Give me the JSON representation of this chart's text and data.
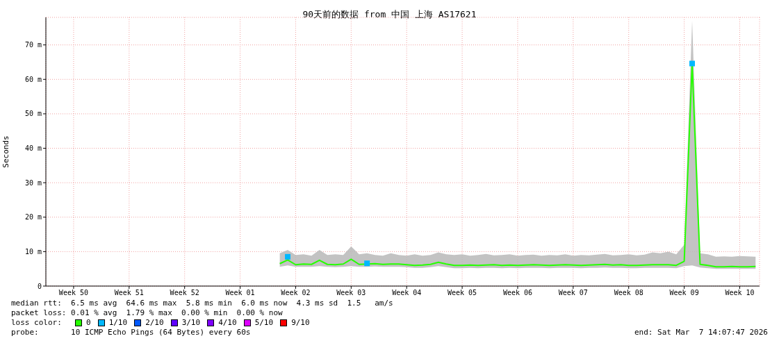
{
  "chart_data": {
    "type": "line",
    "title": "90天前的数据 from 中国 上海 AS17621",
    "ylabel": "Seconds",
    "legend_title": "loss color:",
    "legend": "bottom",
    "grid": true,
    "line_style": "solid",
    "categories": [
      null,
      null,
      null,
      "Week 50",
      null,
      null,
      null,
      null,
      null,
      null,
      "Week 51",
      null,
      null,
      null,
      null,
      null,
      null,
      "Week 52",
      null,
      null,
      null,
      null,
      null,
      null,
      "Week 01",
      null,
      null,
      null,
      null,
      null,
      null,
      "Week 02",
      null,
      null,
      null,
      null,
      null,
      null,
      "Week 03",
      null,
      null,
      null,
      null,
      null,
      null,
      "Week 04",
      null,
      null,
      null,
      null,
      null,
      null,
      "Week 05",
      null,
      null,
      null,
      null,
      null,
      null,
      "Week 06",
      null,
      null,
      null,
      null,
      null,
      null,
      "Week 07",
      null,
      null,
      null,
      null,
      null,
      null,
      "Week 08",
      null,
      null,
      null,
      null,
      null,
      null,
      "Week 09",
      null,
      null,
      null,
      null,
      null,
      null,
      "Week 10",
      null,
      null
    ],
    "ylim": [
      0,
      78
    ],
    "yticks": [
      0,
      {
        "value": 10,
        "label": "10 m"
      },
      {
        "value": 20,
        "label": "20 m"
      },
      {
        "value": 30,
        "label": "30 m"
      },
      {
        "value": 40,
        "label": "40 m"
      },
      {
        "value": 50,
        "label": "50 m"
      },
      {
        "value": 60,
        "label": "60 m"
      },
      {
        "value": 70,
        "label": "70 m"
      }
    ],
    "series": [
      {
        "name": "0",
        "color": "#26ff00",
        "values": [
          null,
          null,
          null,
          null,
          null,
          null,
          null,
          null,
          null,
          null,
          null,
          null,
          null,
          null,
          null,
          null,
          null,
          null,
          null,
          null,
          null,
          null,
          null,
          null,
          null,
          null,
          null,
          null,
          null,
          6.5,
          7.6,
          6.2,
          6.4,
          6.3,
          7.5,
          6.3,
          6.2,
          6.4,
          7.8,
          6.3,
          6.4,
          6.5,
          6.3,
          6.4,
          6.4,
          6.2,
          6,
          6.1,
          6.3,
          6.9,
          6.4,
          6,
          6,
          6.1,
          6,
          6.1,
          6.2,
          6,
          6.1,
          6,
          6.1,
          6.2,
          6.1,
          6,
          6.1,
          6.2,
          6.1,
          6,
          6.1,
          6.2,
          6.3,
          6.1,
          6.2,
          6,
          6,
          6.1,
          6.2,
          6.2,
          6.2,
          6,
          7.2,
          64.6,
          6.3,
          6,
          5.6,
          5.6,
          5.7,
          5.6,
          5.6,
          5.7
        ],
        "lower": [
          null,
          null,
          null,
          null,
          null,
          null,
          null,
          null,
          null,
          null,
          null,
          null,
          null,
          null,
          null,
          null,
          null,
          null,
          null,
          null,
          null,
          null,
          null,
          null,
          null,
          null,
          null,
          null,
          null,
          5.6,
          6,
          5.6,
          5.6,
          5.6,
          5.8,
          5.6,
          5.5,
          5.6,
          5.8,
          5.6,
          5.6,
          5.7,
          5.6,
          5.6,
          5.6,
          5.5,
          5.3,
          5.3,
          5.5,
          5.8,
          5.5,
          5.2,
          5.2,
          5.3,
          5.2,
          5.3,
          5.3,
          5.2,
          5.3,
          5.2,
          5.3,
          5.3,
          5.3,
          5.2,
          5.3,
          5.3,
          5.3,
          5.2,
          5.3,
          5.3,
          5.4,
          5.3,
          5.3,
          5.2,
          5.2,
          5.3,
          5.3,
          5.3,
          5.3,
          5.2,
          5.8,
          6,
          5.4,
          5.2,
          5,
          5,
          5,
          5,
          5,
          5
        ],
        "upper": [
          null,
          null,
          null,
          null,
          null,
          null,
          null,
          null,
          null,
          null,
          null,
          null,
          null,
          null,
          null,
          null,
          null,
          null,
          null,
          null,
          null,
          null,
          null,
          null,
          null,
          null,
          null,
          null,
          null,
          9.5,
          10.5,
          9,
          9.2,
          8.8,
          10.5,
          9,
          9.2,
          9,
          11.5,
          9.2,
          9.5,
          9,
          8.8,
          9.5,
          9,
          8.8,
          9.2,
          8.8,
          9,
          9.8,
          9.2,
          9,
          9.2,
          8.8,
          9,
          9.3,
          8.9,
          9,
          9.2,
          8.8,
          9,
          9.1,
          8.8,
          9,
          8.9,
          9.2,
          8.8,
          9,
          8.9,
          9.1,
          9.3,
          8.9,
          9,
          9.2,
          8.9,
          9.1,
          9.8,
          9.5,
          10,
          9.2,
          12,
          77,
          9.5,
          9.2,
          8.5,
          8.6,
          8.5,
          8.7,
          8.6,
          8.5
        ]
      },
      {
        "name": "1/10",
        "color": "#00b8ff",
        "type": "scatter",
        "marker": "square",
        "values": [
          null,
          null,
          null,
          null,
          null,
          null,
          null,
          null,
          null,
          null,
          null,
          null,
          null,
          null,
          null,
          null,
          null,
          null,
          null,
          null,
          null,
          null,
          null,
          null,
          null,
          null,
          null,
          null,
          null,
          null,
          8.5,
          null,
          null,
          null,
          null,
          null,
          null,
          null,
          null,
          null,
          6.6,
          null,
          null,
          null,
          null,
          null,
          null,
          null,
          null,
          null,
          null,
          null,
          null,
          null,
          null,
          null,
          null,
          null,
          null,
          null,
          null,
          null,
          null,
          null,
          null,
          null,
          null,
          null,
          null,
          null,
          null,
          null,
          null,
          null,
          null,
          null,
          null,
          null,
          null,
          null,
          null,
          64.6,
          null,
          null,
          null,
          null,
          null,
          null,
          null,
          null
        ]
      },
      {
        "name": "2/10",
        "color": "#0059ff",
        "type": "scatter",
        "values": [
          null,
          null,
          null,
          null,
          null,
          null,
          null,
          null,
          null,
          null,
          null,
          null,
          null,
          null,
          null,
          null,
          null,
          null,
          null,
          null,
          null,
          null,
          null,
          null,
          null,
          null,
          null,
          null,
          null,
          null,
          null,
          null,
          null,
          null,
          null,
          null,
          null,
          null,
          null,
          null,
          null,
          null,
          null,
          null,
          null,
          null,
          null,
          null,
          null,
          null,
          null,
          null,
          null,
          null,
          null,
          null,
          null,
          null,
          null,
          null,
          null,
          null,
          null,
          null,
          null,
          null,
          null,
          null,
          null,
          null,
          null,
          null,
          null,
          null,
          null,
          null,
          null,
          null,
          null,
          null,
          null,
          null,
          null,
          null,
          null,
          null,
          null,
          null,
          null,
          null
        ]
      },
      {
        "name": "3/10",
        "color": "#5e00ff",
        "type": "scatter",
        "values": [
          null,
          null,
          null,
          null,
          null,
          null,
          null,
          null,
          null,
          null,
          null,
          null,
          null,
          null,
          null,
          null,
          null,
          null,
          null,
          null,
          null,
          null,
          null,
          null,
          null,
          null,
          null,
          null,
          null,
          null,
          null,
          null,
          null,
          null,
          null,
          null,
          null,
          null,
          null,
          null,
          null,
          null,
          null,
          null,
          null,
          null,
          null,
          null,
          null,
          null,
          null,
          null,
          null,
          null,
          null,
          null,
          null,
          null,
          null,
          null,
          null,
          null,
          null,
          null,
          null,
          null,
          null,
          null,
          null,
          null,
          null,
          null,
          null,
          null,
          null,
          null,
          null,
          null,
          null,
          null,
          null,
          null,
          null,
          null,
          null,
          null,
          null,
          null,
          null,
          null
        ]
      },
      {
        "name": "4/10",
        "color": "#7e00ff",
        "type": "scatter",
        "values": [
          null,
          null,
          null,
          null,
          null,
          null,
          null,
          null,
          null,
          null,
          null,
          null,
          null,
          null,
          null,
          null,
          null,
          null,
          null,
          null,
          null,
          null,
          null,
          null,
          null,
          null,
          null,
          null,
          null,
          null,
          null,
          null,
          null,
          null,
          null,
          null,
          null,
          null,
          null,
          null,
          null,
          null,
          null,
          null,
          null,
          null,
          null,
          null,
          null,
          null,
          null,
          null,
          null,
          null,
          null,
          null,
          null,
          null,
          null,
          null,
          null,
          null,
          null,
          null,
          null,
          null,
          null,
          null,
          null,
          null,
          null,
          null,
          null,
          null,
          null,
          null,
          null,
          null,
          null,
          null,
          null,
          null,
          null,
          null,
          null,
          null,
          null,
          null,
          null,
          null
        ]
      },
      {
        "name": "5/10",
        "color": "#dd00ff",
        "type": "scatter",
        "values": [
          null,
          null,
          null,
          null,
          null,
          null,
          null,
          null,
          null,
          null,
          null,
          null,
          null,
          null,
          null,
          null,
          null,
          null,
          null,
          null,
          null,
          null,
          null,
          null,
          null,
          null,
          null,
          null,
          null,
          null,
          null,
          null,
          null,
          null,
          null,
          null,
          null,
          null,
          null,
          null,
          null,
          null,
          null,
          null,
          null,
          null,
          null,
          null,
          null,
          null,
          null,
          null,
          null,
          null,
          null,
          null,
          null,
          null,
          null,
          null,
          null,
          null,
          null,
          null,
          null,
          null,
          null,
          null,
          null,
          null,
          null,
          null,
          null,
          null,
          null,
          null,
          null,
          null,
          null,
          null,
          null,
          null,
          null,
          null,
          null,
          null,
          null,
          null,
          null,
          null
        ]
      },
      {
        "name": "9/10",
        "color": "#ff0000",
        "type": "scatter",
        "values": [
          null,
          null,
          null,
          null,
          null,
          null,
          null,
          null,
          null,
          null,
          null,
          null,
          null,
          null,
          null,
          null,
          null,
          null,
          null,
          null,
          null,
          null,
          null,
          null,
          null,
          null,
          null,
          null,
          null,
          null,
          null,
          null,
          null,
          null,
          null,
          null,
          null,
          null,
          null,
          null,
          null,
          null,
          null,
          null,
          null,
          null,
          null,
          null,
          null,
          null,
          null,
          null,
          null,
          null,
          null,
          null,
          null,
          null,
          null,
          null,
          null,
          null,
          null,
          null,
          null,
          null,
          null,
          null,
          null,
          null,
          null,
          null,
          null,
          null,
          null,
          null,
          null,
          null,
          null,
          null,
          null,
          null,
          null,
          null,
          null,
          null,
          null,
          null,
          null,
          null
        ]
      }
    ],
    "annotations": [
      "median rtt:  6.5 ms avg  64.6 ms max  5.8 ms min  6.0 ms now  4.3 ms sd  1.5   am/s",
      "packet loss: 0.01 % avg  1.79 % max  0.00 % min  0.00 % now",
      "probe:       10 ICMP Echo Pings (64 Bytes) every 60s",
      "end: Sat Mar  7 14:07:47 2026"
    ]
  }
}
